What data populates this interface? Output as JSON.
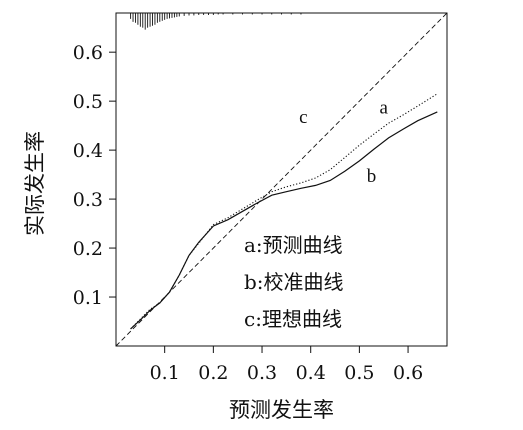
{
  "chart_data": {
    "type": "line",
    "xlabel": "预测发生率",
    "ylabel": "实际发生率",
    "x_ticks": [
      "0.1",
      "0.2",
      "0.3",
      "0.4",
      "0.5",
      "0.6"
    ],
    "y_ticks": [
      "0.1",
      "0.2",
      "0.3",
      "0.4",
      "0.5",
      "0.6"
    ],
    "xlim": [
      0.0,
      0.68
    ],
    "ylim": [
      0.0,
      0.68
    ],
    "grid": false,
    "legend": {
      "placement": "lower-right",
      "entries": [
        "a:预测曲线",
        "b:校准曲线",
        "c:理想曲线"
      ]
    },
    "series": [
      {
        "name": "a",
        "style": "dotted",
        "x": [
          0.03,
          0.05,
          0.07,
          0.09,
          0.11,
          0.13,
          0.15,
          0.17,
          0.2,
          0.23,
          0.26,
          0.29,
          0.32,
          0.35,
          0.38,
          0.41,
          0.44,
          0.47,
          0.5,
          0.53,
          0.56,
          0.59,
          0.62,
          0.66
        ],
        "y": [
          0.035,
          0.055,
          0.075,
          0.088,
          0.11,
          0.145,
          0.185,
          0.21,
          0.248,
          0.262,
          0.28,
          0.298,
          0.315,
          0.325,
          0.333,
          0.343,
          0.36,
          0.385,
          0.41,
          0.433,
          0.455,
          0.472,
          0.49,
          0.515
        ]
      },
      {
        "name": "b",
        "style": "solid",
        "x": [
          0.03,
          0.05,
          0.07,
          0.09,
          0.11,
          0.13,
          0.15,
          0.17,
          0.2,
          0.23,
          0.26,
          0.29,
          0.32,
          0.35,
          0.38,
          0.41,
          0.44,
          0.47,
          0.5,
          0.53,
          0.56,
          0.59,
          0.62,
          0.66
        ],
        "y": [
          0.035,
          0.053,
          0.073,
          0.088,
          0.11,
          0.145,
          0.185,
          0.212,
          0.245,
          0.258,
          0.275,
          0.292,
          0.308,
          0.315,
          0.322,
          0.328,
          0.338,
          0.357,
          0.378,
          0.402,
          0.425,
          0.443,
          0.46,
          0.478
        ]
      },
      {
        "name": "c",
        "style": "dashed",
        "x": [
          0.0,
          0.68
        ],
        "y": [
          0.0,
          0.68
        ]
      }
    ],
    "rug_x": [
      0.03,
      0.035,
      0.04,
      0.045,
      0.05,
      0.055,
      0.06,
      0.065,
      0.07,
      0.075,
      0.08,
      0.085,
      0.09,
      0.095,
      0.1,
      0.105,
      0.11,
      0.115,
      0.12,
      0.125,
      0.13,
      0.14,
      0.15,
      0.16,
      0.17,
      0.18,
      0.19,
      0.2,
      0.21,
      0.22,
      0.24,
      0.26,
      0.28,
      0.3,
      0.32,
      0.34,
      0.36,
      0.38
    ],
    "rug_h": [
      0.012,
      0.018,
      0.02,
      0.024,
      0.028,
      0.03,
      0.034,
      0.03,
      0.028,
      0.026,
      0.024,
      0.02,
      0.018,
      0.016,
      0.014,
      0.012,
      0.011,
      0.01,
      0.009,
      0.008,
      0.007,
      0.006,
      0.005,
      0.005,
      0.004,
      0.004,
      0.004,
      0.004,
      0.003,
      0.003,
      0.003,
      0.003,
      0.003,
      0.003,
      0.003,
      0.003,
      0.003,
      0.003
    ],
    "curve_labels": [
      {
        "text": "a",
        "x": 0.55,
        "y": 0.475
      },
      {
        "text": "b",
        "x": 0.525,
        "y": 0.335
      },
      {
        "text": "c",
        "x": 0.385,
        "y": 0.455
      }
    ]
  }
}
